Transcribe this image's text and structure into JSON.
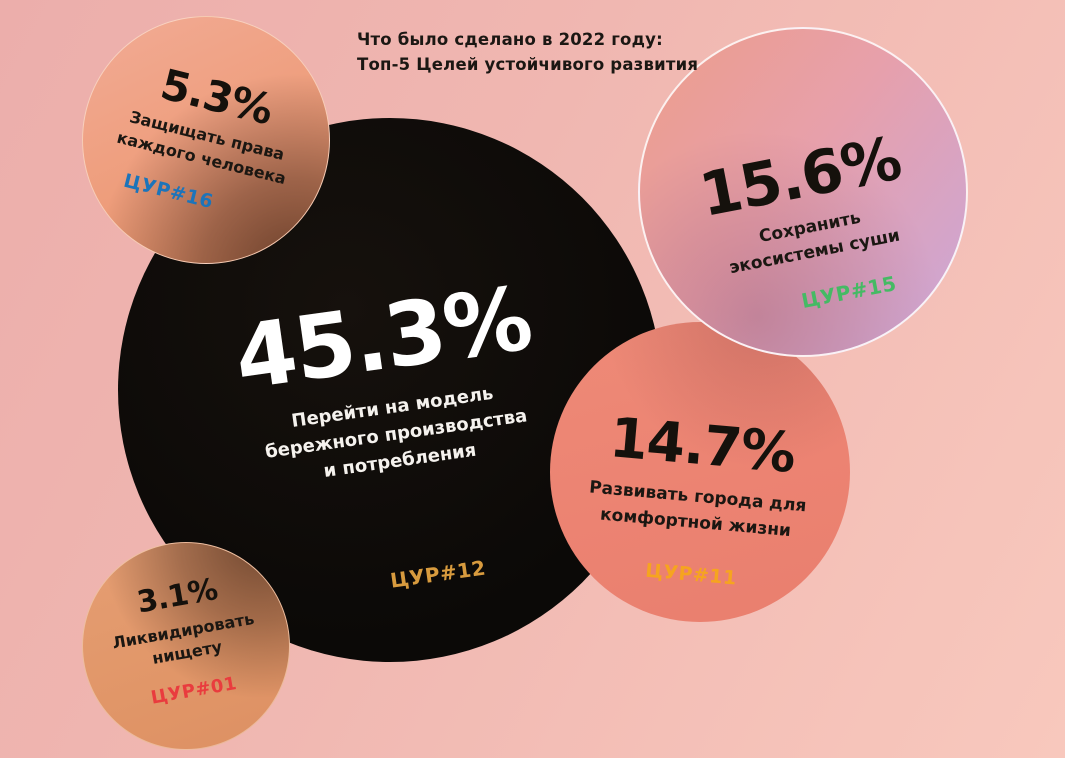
{
  "title": "Что было сделано в 2022 году:\nТоп-5 Целей устойчивого развития",
  "colors": {
    "background_top_left": "#ecaeab",
    "background_bottom_right": "#f8c8bd",
    "bubble_sdg12": "#0c0a08",
    "bubble_sdg15_gradient": [
      "#ec9d8e",
      "#e7a0ab",
      "#cda6d4"
    ],
    "bubble_sdg11": "#ec8372",
    "bubble_sdg16": "#ee9d7b",
    "bubble_sdg01": "#e19668",
    "goal_sdg12": "#d89b3e",
    "goal_sdg15": "#45ba64",
    "goal_sdg11": "#f6a41f",
    "goal_sdg16": "#1c74ba",
    "goal_sdg01": "#e93c3e"
  },
  "bubbles": [
    {
      "id": "sdg12",
      "pct": "45.3%",
      "label": "Перейти на модель\nбережного производства\nи потребления",
      "goal": "ЦУР#12",
      "goal_color": "#d89b3e"
    },
    {
      "id": "sdg15",
      "pct": "15.6%",
      "label": "Сохранить\nэкосистемы суши",
      "goal": "ЦУР#15",
      "goal_color": "#45ba64"
    },
    {
      "id": "sdg11",
      "pct": "14.7%",
      "label": "Развивать города для\nкомфортной жизни",
      "goal": "ЦУР#11",
      "goal_color": "#f6a41f"
    },
    {
      "id": "sdg16",
      "pct": "5.3%",
      "label": "Защищать права\nкаждого человека",
      "goal": "ЦУР#16",
      "goal_color": "#1c74ba"
    },
    {
      "id": "sdg01",
      "pct": "3.1%",
      "label": "Ликвидировать\nнищету",
      "goal": "ЦУР#01",
      "goal_color": "#e93c3e"
    }
  ],
  "chart_data": {
    "type": "bubble",
    "title": "Что было сделано в 2022 году: Топ-5 Целей устойчивого развития",
    "unit": "%",
    "series": [
      {
        "goal": "ЦУР#12",
        "value": 45.3,
        "label": "Перейти на модель бережного производства и потребления"
      },
      {
        "goal": "ЦУР#15",
        "value": 15.6,
        "label": "Сохранить экосистемы суши"
      },
      {
        "goal": "ЦУР#11",
        "value": 14.7,
        "label": "Развивать города для комфортной жизни"
      },
      {
        "goal": "ЦУР#16",
        "value": 5.3,
        "label": "Защищать права каждого человека"
      },
      {
        "goal": "ЦУР#01",
        "value": 3.1,
        "label": "Ликвидировать нищету"
      }
    ],
    "legend_position": "none",
    "grid": false
  }
}
